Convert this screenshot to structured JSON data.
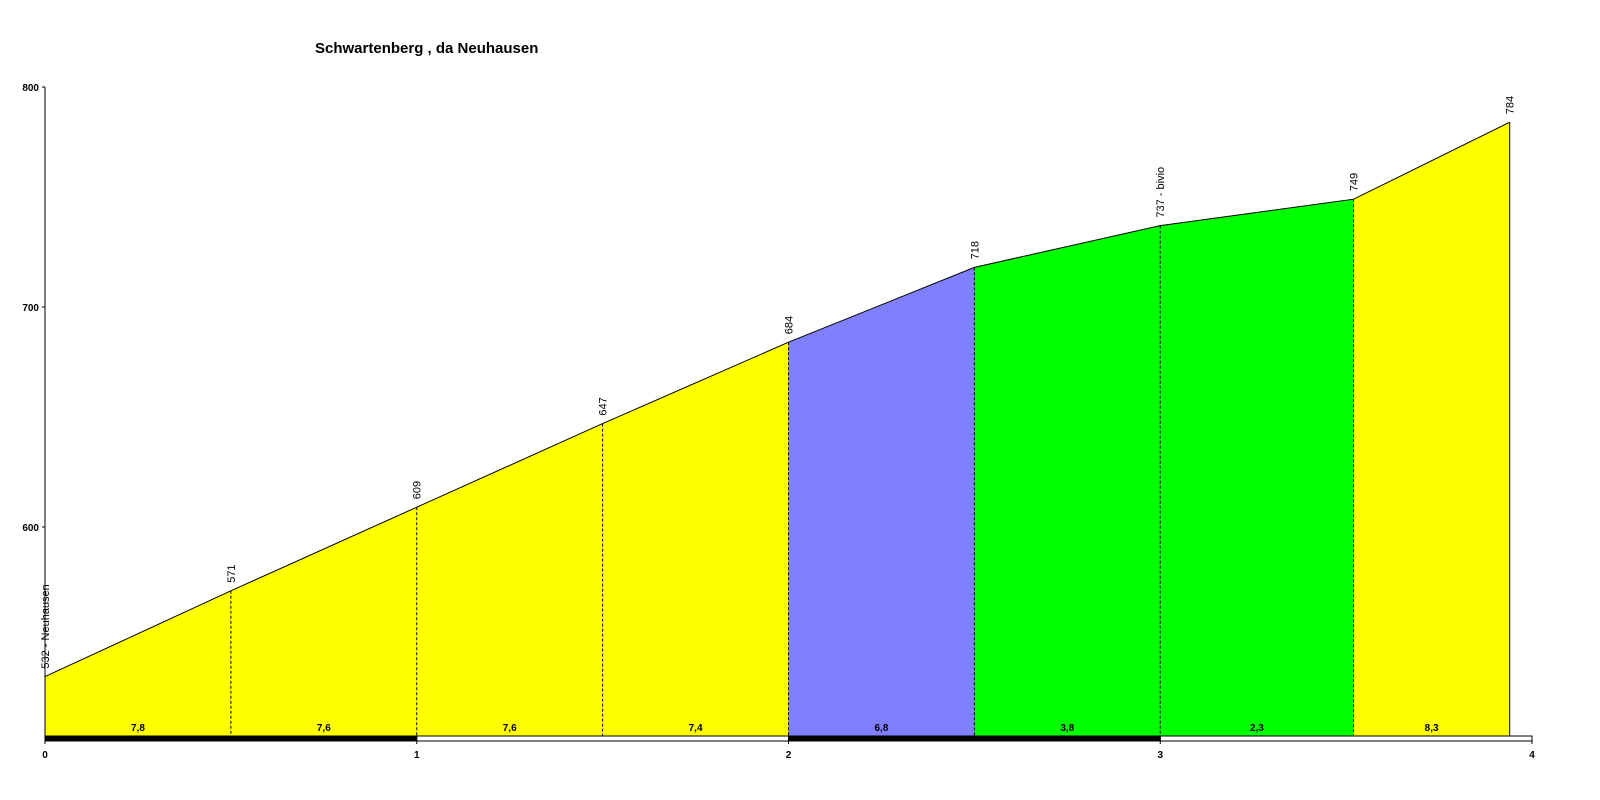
{
  "chart_data": {
    "type": "area",
    "title": "Schwartenberg , da Neuhausen",
    "x": [
      0,
      0.5,
      1,
      1.5,
      2,
      2.5,
      3,
      3.52,
      3.94
    ],
    "values": [
      532,
      571,
      609,
      647,
      684,
      718,
      737,
      749,
      784
    ],
    "value_labels": [
      "532 - Neuhausen",
      "571",
      "609",
      "647",
      "684",
      "718",
      "737 - bivio",
      "749",
      "784"
    ],
    "segments": {
      "values": [
        7.8,
        7.6,
        7.6,
        7.4,
        6.8,
        3.8,
        2.3,
        8.3
      ],
      "value_labels": [
        "7,8",
        "7,6",
        "7,6",
        "7,4",
        "6,8",
        "3,8",
        "2,3",
        "8,3"
      ],
      "colors": [
        "#ffff00",
        "#ffff00",
        "#ffff00",
        "#ffff00",
        "#8080ff",
        "#00ff00",
        "#00ff00",
        "#ffff00"
      ]
    },
    "xlim": [
      0,
      4
    ],
    "xticks": [
      0,
      1,
      2,
      3,
      4
    ],
    "ylim": [
      505,
      800
    ],
    "yticks": [
      600,
      700,
      800
    ]
  }
}
